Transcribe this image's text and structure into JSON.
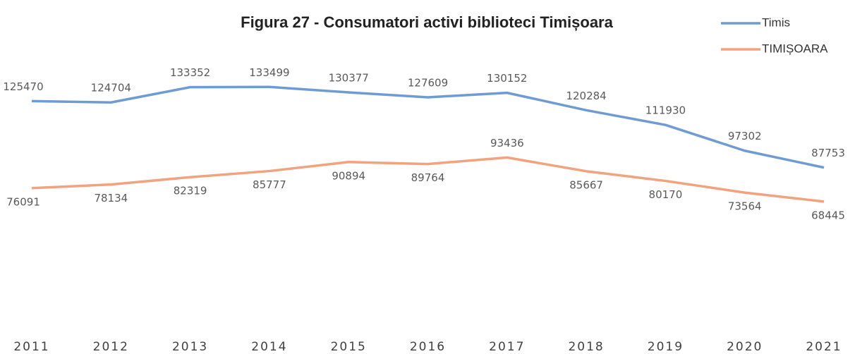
{
  "chart_data": {
    "type": "line",
    "title": "Figura 27 - Consumatori activi biblioteci Timișoara",
    "categories": [
      "2011",
      "2012",
      "2013",
      "2014",
      "2015",
      "2016",
      "2017",
      "2018",
      "2019",
      "2020",
      "2021"
    ],
    "series": [
      {
        "name": "Timis",
        "color": "#6f9bd3",
        "values": [
          125470,
          124704,
          133352,
          133499,
          130377,
          127609,
          130152,
          120284,
          111930,
          97302,
          87753
        ]
      },
      {
        "name": "TIMIȘOARA",
        "color": "#f2a27c",
        "values": [
          76091,
          78134,
          82319,
          85777,
          90894,
          89764,
          93436,
          85667,
          80170,
          73564,
          68445
        ]
      }
    ],
    "ylim": [
      0,
      140000
    ],
    "legend": "top-right"
  }
}
